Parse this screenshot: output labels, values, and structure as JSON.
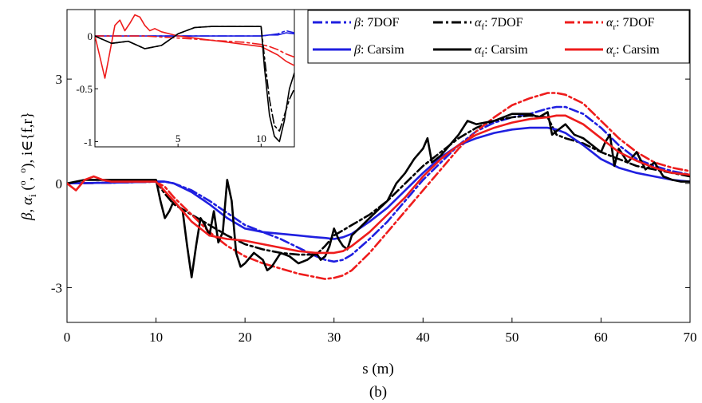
{
  "chart_data": {
    "type": "line",
    "caption": "(b)",
    "xlabel": "s (m)",
    "ylabel": {
      "base": "β, α",
      "sub": "i",
      "paren_open": " (",
      "sup1": "o",
      "comma": ", ",
      "sup2": "o",
      "paren_close": "), i∈{f,r}"
    },
    "xlim": [
      0,
      70
    ],
    "ylim": [
      -4,
      5
    ],
    "xticks": [
      0,
      10,
      20,
      30,
      40,
      50,
      60,
      70
    ],
    "yticks": [
      -3,
      0,
      3
    ],
    "grid": false,
    "legend_position": "top-right",
    "legend": {
      "beta_7dof": {
        "sym": "β",
        "sub": "",
        "rest": ": 7DOF"
      },
      "alpha_f_7dof": {
        "sym": "α",
        "sub": "f",
        "rest": ": 7DOF"
      },
      "alpha_r_7dof": {
        "sym": "α",
        "sub": "r",
        "rest": ": 7DOF"
      },
      "beta_carsim": {
        "sym": "β",
        "sub": "",
        "rest": ": Carsim"
      },
      "alpha_f_carsim": {
        "sym": "α",
        "sub": "f",
        "rest": ": Carsim"
      },
      "alpha_r_carsim": {
        "sym": "α",
        "sub": "r",
        "rest": ": Carsim"
      }
    },
    "colors": {
      "beta": "#1f1fe0",
      "alpha_f": "#000000",
      "alpha_r": "#ee1c1c"
    },
    "series": [
      {
        "key": "beta_7dof",
        "style": "dashdot",
        "color": "#1f1fe0",
        "x": [
          0,
          5,
          10,
          11,
          12,
          14,
          16,
          18,
          20,
          22,
          24,
          26,
          28,
          29,
          30,
          31,
          32,
          34,
          36,
          38,
          40,
          42,
          44,
          46,
          48,
          50,
          52,
          54,
          55,
          56,
          58,
          60,
          62,
          64,
          66,
          68,
          70
        ],
        "y": [
          0,
          0.02,
          0.05,
          0.05,
          0,
          -0.2,
          -0.5,
          -0.85,
          -1.2,
          -1.4,
          -1.6,
          -1.85,
          -2.1,
          -2.2,
          -2.25,
          -2.2,
          -2.05,
          -1.6,
          -1.1,
          -0.5,
          0.1,
          0.6,
          1.1,
          1.5,
          1.75,
          1.9,
          2,
          2.15,
          2.2,
          2.2,
          2,
          1.6,
          1.1,
          0.7,
          0.5,
          0.35,
          0.25
        ]
      },
      {
        "key": "alpha_f_7dof",
        "style": "dashdot",
        "color": "#000000",
        "x": [
          0,
          5,
          10,
          11,
          12,
          14,
          16,
          18,
          20,
          22,
          24,
          26,
          28,
          29,
          30,
          31,
          32,
          34,
          36,
          38,
          40,
          42,
          44,
          46,
          48,
          50,
          52,
          54,
          55,
          56,
          58,
          60,
          62,
          64,
          66,
          68,
          70
        ],
        "y": [
          0,
          0.02,
          0.05,
          -0.3,
          -0.6,
          -0.9,
          -1.2,
          -1.5,
          -1.75,
          -1.9,
          -2,
          -2.05,
          -2.05,
          -1.8,
          -1.5,
          -1.35,
          -1.2,
          -0.9,
          -0.5,
          0,
          0.5,
          0.9,
          1.3,
          1.6,
          1.8,
          1.9,
          1.95,
          1.9,
          1.4,
          1.3,
          1.15,
          0.9,
          0.7,
          0.5,
          0.4,
          0.3,
          0.2
        ]
      },
      {
        "key": "alpha_r_7dof",
        "style": "dashdot",
        "color": "#ee1c1c",
        "x": [
          0,
          5,
          10,
          11,
          12,
          14,
          16,
          18,
          20,
          22,
          24,
          26,
          28,
          29,
          30,
          31,
          32,
          34,
          36,
          38,
          40,
          42,
          44,
          46,
          48,
          50,
          52,
          54,
          55,
          56,
          58,
          60,
          62,
          64,
          66,
          68,
          70
        ],
        "y": [
          0,
          0.02,
          0.05,
          -0.1,
          -0.4,
          -0.9,
          -1.4,
          -1.8,
          -2.1,
          -2.3,
          -2.45,
          -2.6,
          -2.7,
          -2.75,
          -2.72,
          -2.65,
          -2.5,
          -2.0,
          -1.4,
          -0.8,
          -0.2,
          0.4,
          1.0,
          1.5,
          1.9,
          2.25,
          2.45,
          2.6,
          2.6,
          2.55,
          2.3,
          1.8,
          1.3,
          0.9,
          0.6,
          0.45,
          0.35
        ]
      },
      {
        "key": "beta_carsim",
        "style": "solid",
        "color": "#1f1fe0",
        "x": [
          0,
          5,
          10,
          11,
          12,
          14,
          16,
          18,
          20,
          22,
          24,
          26,
          28,
          29,
          30,
          31,
          32,
          34,
          36,
          38,
          40,
          42,
          44,
          46,
          48,
          50,
          52,
          54,
          55,
          56,
          58,
          60,
          62,
          64,
          66,
          68,
          70
        ],
        "y": [
          0,
          0.02,
          0.05,
          0.05,
          0,
          -0.25,
          -0.6,
          -1,
          -1.3,
          -1.4,
          -1.45,
          -1.5,
          -1.55,
          -1.57,
          -1.6,
          -1.55,
          -1.45,
          -1.1,
          -0.7,
          -0.2,
          0.3,
          0.75,
          1.1,
          1.3,
          1.45,
          1.55,
          1.6,
          1.6,
          1.55,
          1.45,
          1.1,
          0.7,
          0.45,
          0.3,
          0.2,
          0.1,
          0.05
        ]
      },
      {
        "key": "alpha_f_carsim",
        "style": "solid",
        "color": "#000000",
        "x": [
          0,
          2,
          3,
          5,
          8,
          10,
          10.5,
          11,
          11.5,
          12,
          13,
          13.5,
          14,
          14.5,
          15,
          15.5,
          16,
          16.5,
          17,
          17.5,
          18,
          18.5,
          19,
          19.5,
          20,
          21,
          22,
          22.5,
          23,
          24,
          25,
          26,
          27,
          28,
          28.5,
          29,
          29.5,
          30,
          30.5,
          31,
          31.5,
          32,
          34,
          36,
          37,
          38,
          39,
          40,
          40.5,
          41,
          42,
          44,
          45,
          46,
          48,
          50,
          52,
          53,
          54,
          54.5,
          55,
          56,
          57,
          58,
          59,
          60,
          60.5,
          61,
          61.5,
          62,
          63,
          64,
          65,
          66,
          67,
          68,
          69,
          70
        ],
        "y": [
          0,
          0.1,
          0.1,
          0.1,
          0.1,
          0.1,
          -0.5,
          -1,
          -0.8,
          -0.5,
          -0.8,
          -1.8,
          -2.7,
          -1.8,
          -1,
          -1.2,
          -1.5,
          -0.8,
          -1.7,
          -1.4,
          0.1,
          -0.5,
          -2,
          -2.4,
          -2.3,
          -2,
          -2.2,
          -2.5,
          -2.4,
          -2,
          -2.1,
          -2.3,
          -2.2,
          -2,
          -2.2,
          -2.1,
          -1.8,
          -1.3,
          -1.6,
          -1.8,
          -1.9,
          -1.5,
          -1,
          -0.5,
          0,
          0.3,
          0.7,
          1.0,
          1.3,
          0.6,
          0.8,
          1.4,
          1.8,
          1.7,
          1.8,
          2,
          2,
          1.9,
          2.05,
          1.4,
          1.5,
          1.7,
          1.4,
          1.3,
          1.1,
          0.9,
          1.2,
          1.4,
          0.5,
          1.0,
          0.6,
          0.9,
          0.4,
          0.6,
          0.2,
          0.1,
          0.05,
          0.05
        ]
      },
      {
        "key": "alpha_r_carsim",
        "style": "solid",
        "color": "#ee1c1c",
        "x": [
          0,
          1,
          2,
          3,
          4,
          5,
          10,
          12,
          14,
          16,
          18,
          20,
          22,
          24,
          26,
          28,
          29,
          30,
          31,
          32,
          34,
          36,
          38,
          40,
          42,
          44,
          46,
          48,
          50,
          52,
          54,
          55,
          56,
          58,
          60,
          62,
          64,
          66,
          68,
          70
        ],
        "y": [
          0,
          -0.2,
          0.1,
          0.2,
          0.1,
          0.05,
          0.05,
          -0.5,
          -1.1,
          -1.5,
          -1.6,
          -1.65,
          -1.75,
          -1.85,
          -1.95,
          -2.0,
          -2.0,
          -2.0,
          -1.95,
          -1.8,
          -1.4,
          -0.9,
          -0.4,
          0.2,
          0.7,
          1.1,
          1.4,
          1.6,
          1.75,
          1.85,
          1.9,
          1.95,
          1.95,
          1.7,
          1.3,
          0.9,
          0.65,
          0.45,
          0.3,
          0.25
        ]
      }
    ],
    "inset": {
      "xlim": [
        0,
        12
      ],
      "ylim": [
        -1.05,
        0.25
      ],
      "xticks": [
        5,
        10
      ],
      "yticks": [
        0,
        -0.5,
        -1
      ],
      "series": [
        {
          "key": "beta_7dof",
          "style": "dashdot",
          "color": "#1f1fe0",
          "x": [
            0,
            10,
            10.5,
            11,
            11.5,
            12
          ],
          "y": [
            0,
            0,
            0.01,
            0.02,
            0.05,
            0.03
          ]
        },
        {
          "key": "beta_carsim",
          "style": "solid",
          "color": "#1f1fe0",
          "x": [
            0,
            10,
            10.5,
            11,
            11.5,
            12
          ],
          "y": [
            0,
            0,
            0.01,
            0.01,
            0.03,
            0.02
          ]
        },
        {
          "key": "alpha_r_7dof",
          "style": "dashdot",
          "color": "#ee1c1c",
          "x": [
            0,
            1,
            2,
            3,
            4,
            5,
            6,
            7,
            8,
            9,
            10,
            10.5,
            11,
            11.5,
            12
          ],
          "y": [
            0,
            0,
            0,
            0,
            -0.01,
            -0.02,
            -0.03,
            -0.04,
            -0.05,
            -0.06,
            -0.08,
            -0.1,
            -0.13,
            -0.17,
            -0.2
          ]
        },
        {
          "key": "alpha_r_carsim",
          "style": "solid",
          "color": "#ee1c1c",
          "x": [
            0,
            0.3,
            0.6,
            0.9,
            1.2,
            1.5,
            1.8,
            2.1,
            2.4,
            2.7,
            3.0,
            3.3,
            3.6,
            4,
            5,
            6,
            7,
            8,
            9,
            10,
            10.5,
            11,
            11.5,
            12
          ],
          "y": [
            0,
            -0.2,
            -0.4,
            -0.15,
            0.1,
            0.15,
            0.05,
            0.12,
            0.2,
            0.18,
            0.1,
            0.05,
            0.07,
            0.04,
            0,
            -0.02,
            -0.04,
            -0.06,
            -0.08,
            -0.1,
            -0.14,
            -0.18,
            -0.24,
            -0.28
          ]
        },
        {
          "key": "alpha_f_7dof",
          "style": "dashdot",
          "color": "#000000",
          "x": [
            0,
            1,
            2,
            3,
            4,
            5,
            6,
            7,
            8,
            9,
            10,
            10.2,
            10.5,
            10.8,
            11.1,
            11.4,
            11.7,
            12
          ],
          "y": [
            0,
            -0.07,
            -0.05,
            -0.12,
            -0.09,
            0.02,
            0.08,
            0.09,
            0.09,
            0.09,
            0.09,
            -0.2,
            -0.6,
            -0.85,
            -0.9,
            -0.75,
            -0.6,
            -0.5
          ]
        },
        {
          "key": "alpha_f_carsim",
          "style": "solid",
          "color": "#000000",
          "x": [
            0,
            1,
            2,
            3,
            4,
            5,
            6,
            7,
            8,
            9,
            10,
            10.2,
            10.5,
            10.8,
            11.1,
            11.4,
            11.7,
            12
          ],
          "y": [
            0,
            -0.07,
            -0.05,
            -0.12,
            -0.09,
            0.02,
            0.08,
            0.09,
            0.09,
            0.09,
            0.09,
            -0.3,
            -0.75,
            -0.95,
            -1.0,
            -0.8,
            -0.5,
            -0.35
          ]
        }
      ]
    }
  }
}
